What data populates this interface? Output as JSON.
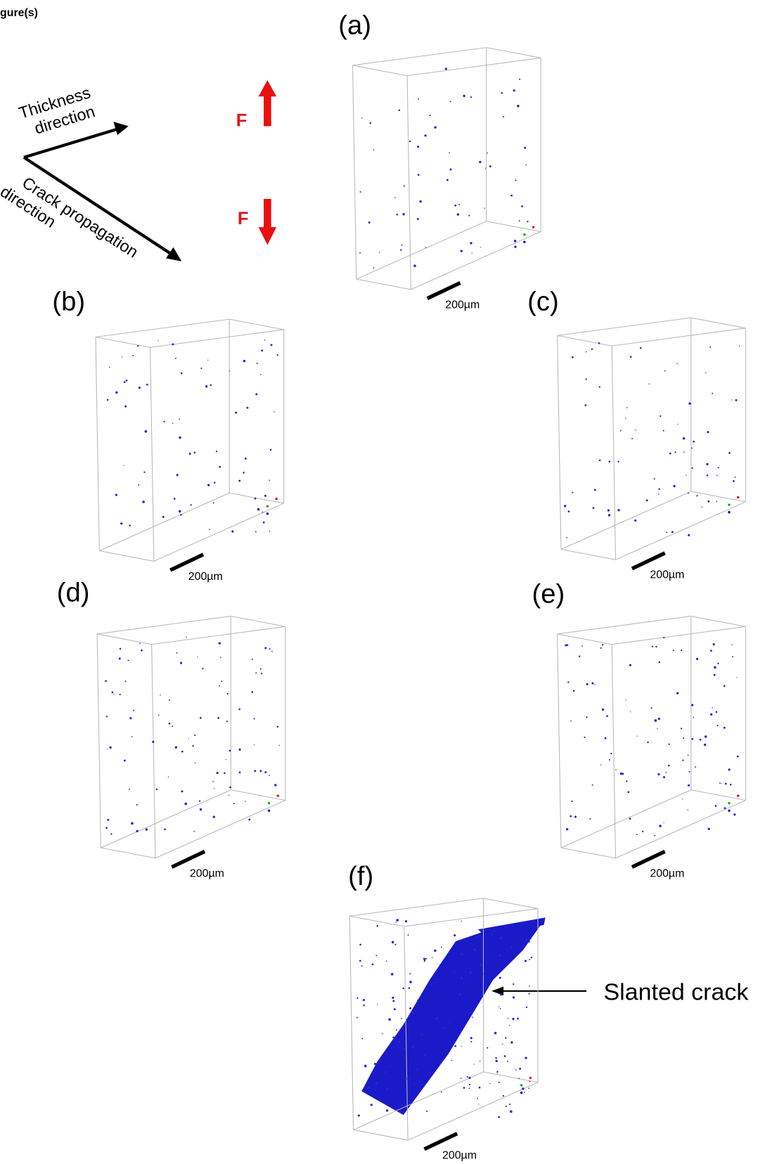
{
  "header": {
    "title": "gure(s)"
  },
  "legend": {
    "thickness": [
      "Thickness",
      "direction"
    ],
    "crack": [
      "Crack propagation",
      "direction"
    ],
    "force_top": "F",
    "force_bottom": "F"
  },
  "panels": [
    {
      "label": "(a)",
      "scale": "200µm"
    },
    {
      "label": "(b)",
      "scale": "200µm"
    },
    {
      "label": "(c)",
      "scale": "200µm"
    },
    {
      "label": "(d)",
      "scale": "200µm"
    },
    {
      "label": "(e)",
      "scale": "200µm"
    },
    {
      "label": "(f)",
      "scale": "200µm"
    }
  ],
  "annotation": "Slanted crack"
}
